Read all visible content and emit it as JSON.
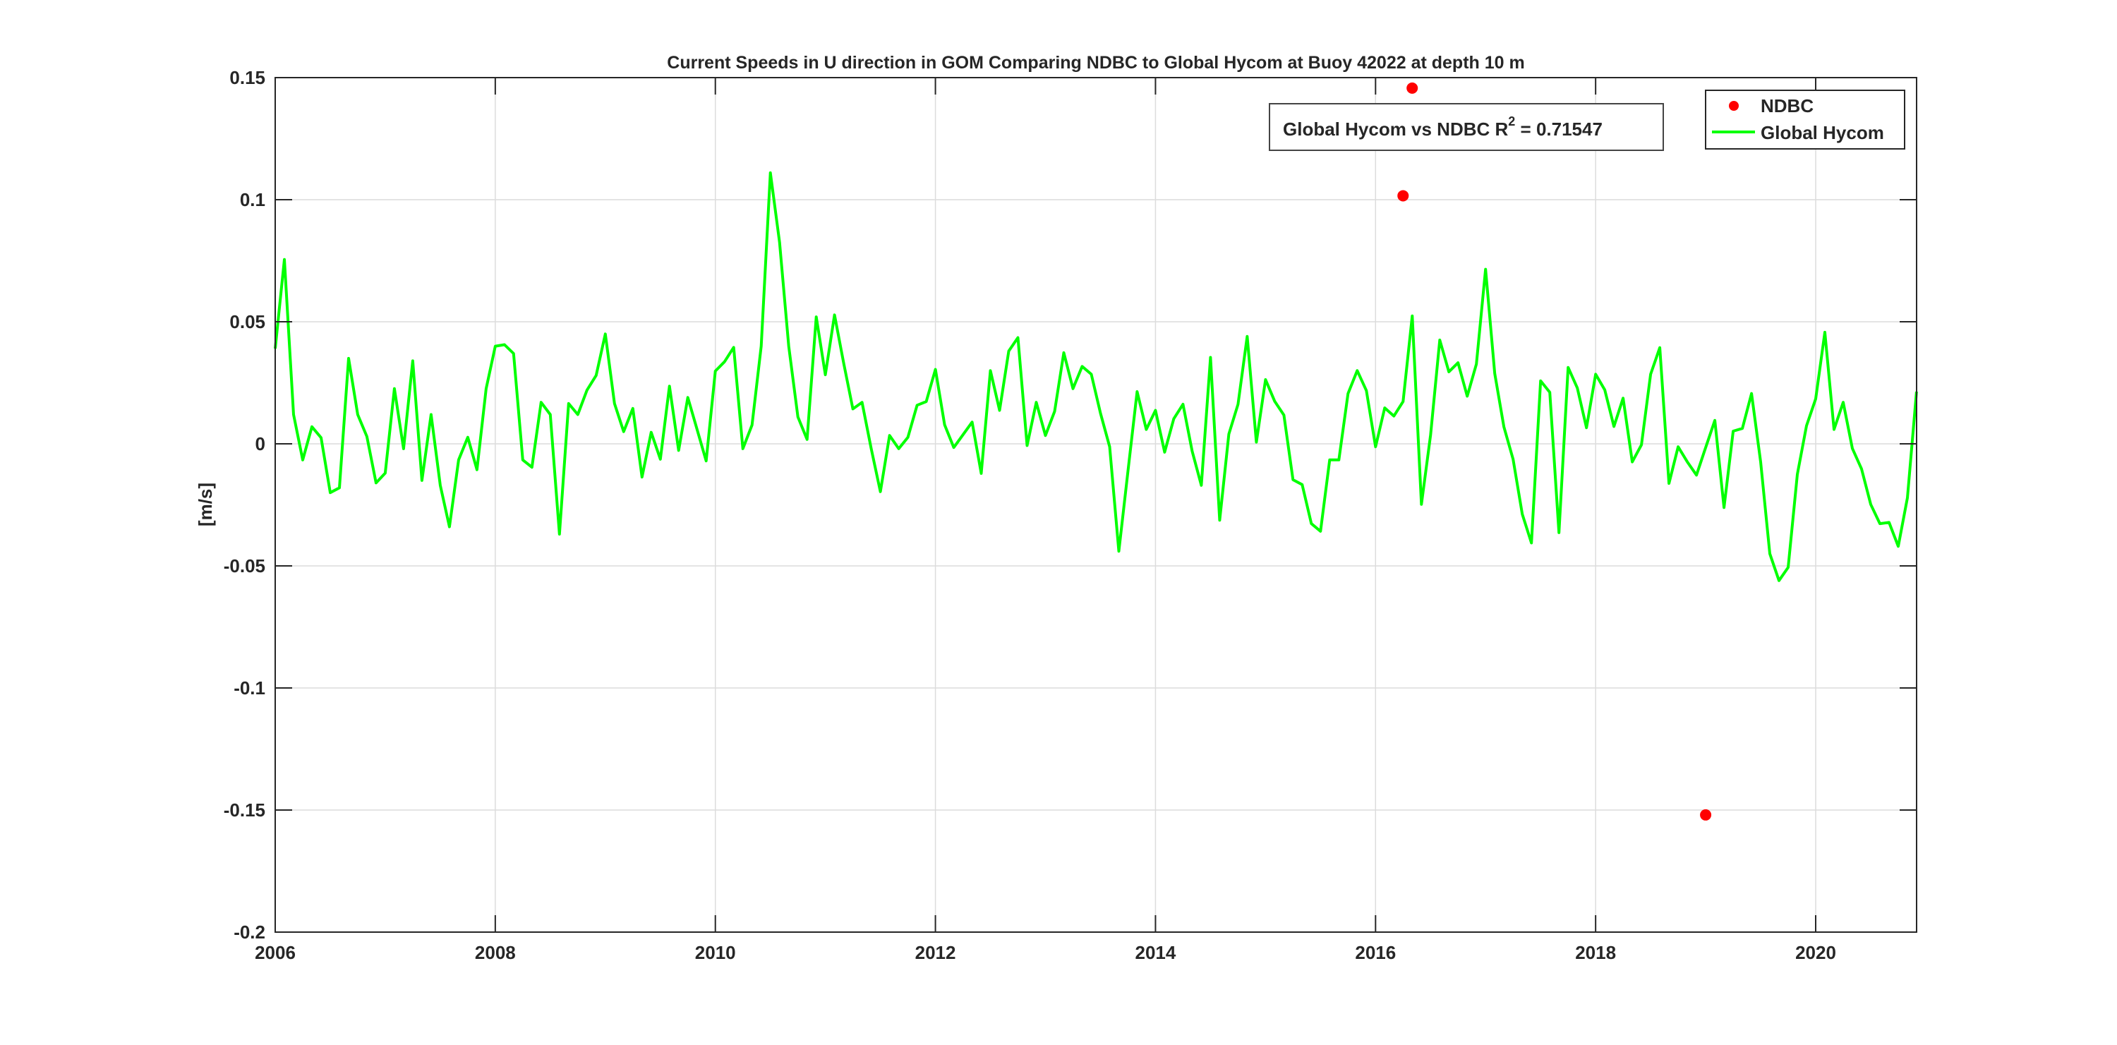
{
  "chart_data": {
    "type": "line",
    "title": "Current Speeds in U direction in GOM Comparing NDBC to Global Hycom at Buoy  42022  at depth  10 m",
    "xlabel": "",
    "ylabel": "[m/s]",
    "xlim": [
      2006,
      2020.917
    ],
    "ylim": [
      -0.2,
      0.15
    ],
    "grid": true,
    "xticks": [
      2006,
      2008,
      2010,
      2012,
      2014,
      2016,
      2018,
      2020
    ],
    "xtick_labels": [
      "2006",
      "2008",
      "2010",
      "2012",
      "2014",
      "2016",
      "2018",
      "2020"
    ],
    "yticks": [
      -0.2,
      -0.15,
      -0.1,
      -0.05,
      0,
      0.05,
      0.1,
      0.15
    ],
    "ytick_labels": [
      "-0.2",
      "-0.15",
      "-0.1",
      "-0.05",
      "0",
      "0.05",
      "0.1",
      "0.15"
    ],
    "annotation": {
      "text": "Global Hycom vs NDBC R",
      "sup": "2",
      "suffix": " = 0.71547"
    },
    "legend": {
      "placement": "top-right",
      "entries": [
        "NDBC",
        "Global Hycom"
      ]
    },
    "series": [
      {
        "name": "NDBC",
        "style": "markers",
        "color": "#ff0000",
        "x": [
          2016.25,
          2016.333,
          2019.0
        ],
        "y": [
          0.1016,
          0.1457,
          -0.152
        ]
      },
      {
        "name": "Global Hycom",
        "style": "line",
        "color": "#00ff00",
        "x_start": 2006.0,
        "x_step_months": 1,
        "y": [
          0.039,
          0.0755,
          0.012,
          -0.0066,
          0.007,
          0.0025,
          -0.02,
          -0.018,
          0.035,
          0.012,
          0.003,
          -0.016,
          -0.012,
          0.0226,
          -0.002,
          0.034,
          -0.015,
          0.012,
          -0.017,
          -0.034,
          -0.0066,
          0.0027,
          -0.0106,
          0.0226,
          0.04,
          0.0406,
          0.037,
          -0.0066,
          -0.0096,
          0.017,
          0.012,
          -0.037,
          0.0165,
          0.012,
          0.022,
          0.028,
          0.045,
          0.0165,
          0.005,
          0.0145,
          -0.0136,
          0.0047,
          -0.0063,
          0.0236,
          -0.0027,
          0.019,
          0.006,
          -0.007,
          0.0298,
          0.0336,
          0.0395,
          -0.002,
          0.0077,
          0.04,
          0.111,
          0.0826,
          0.04,
          0.011,
          0.0018,
          0.052,
          0.0283,
          0.0528,
          0.033,
          0.0143,
          0.017,
          -0.002,
          -0.0196,
          0.0034,
          -0.002,
          0.0027,
          0.0158,
          0.0173,
          0.0305,
          0.0078,
          -0.0015,
          0.0037,
          0.0089,
          -0.0121,
          0.03,
          0.0137,
          0.038,
          0.0435,
          -0.0007,
          0.017,
          0.0034,
          0.0133,
          0.0373,
          0.0226,
          0.0317,
          0.0285,
          0.0125,
          -0.0012,
          -0.044,
          -0.011,
          0.0214,
          0.0059,
          0.0137,
          -0.0034,
          0.0103,
          0.0162,
          -0.003,
          -0.017,
          0.0354,
          -0.0313,
          0.004,
          0.0162,
          0.044,
          0.0007,
          0.0263,
          0.0174,
          0.0118,
          -0.0147,
          -0.0167,
          -0.0327,
          -0.0358,
          -0.0066,
          -0.0066,
          0.0206,
          0.03,
          0.0218,
          -0.0012,
          0.0147,
          0.0114,
          0.0173,
          0.0524,
          -0.0248,
          0.0037,
          0.0425,
          0.0295,
          0.0332,
          0.0195,
          0.0327,
          0.0715,
          0.0288,
          0.0069,
          -0.0063,
          -0.0288,
          -0.0406,
          0.0258,
          0.0211,
          -0.0364,
          0.0313,
          0.0229,
          0.0066,
          0.0285,
          0.0221,
          0.0071,
          0.0187,
          -0.0074,
          -0.0004,
          0.0285,
          0.0394,
          -0.0162,
          -0.0012,
          -0.0074,
          -0.0128,
          -0.0015,
          0.0096,
          -0.0261,
          0.0052,
          0.0063,
          0.0206,
          -0.0074,
          -0.045,
          -0.056,
          -0.0506,
          -0.0125,
          0.0074,
          0.0184,
          0.0457,
          0.0059,
          0.017,
          -0.0019,
          -0.0103,
          -0.0248,
          -0.0327,
          -0.0322,
          -0.042,
          -0.0221,
          0.0214
        ]
      }
    ]
  }
}
